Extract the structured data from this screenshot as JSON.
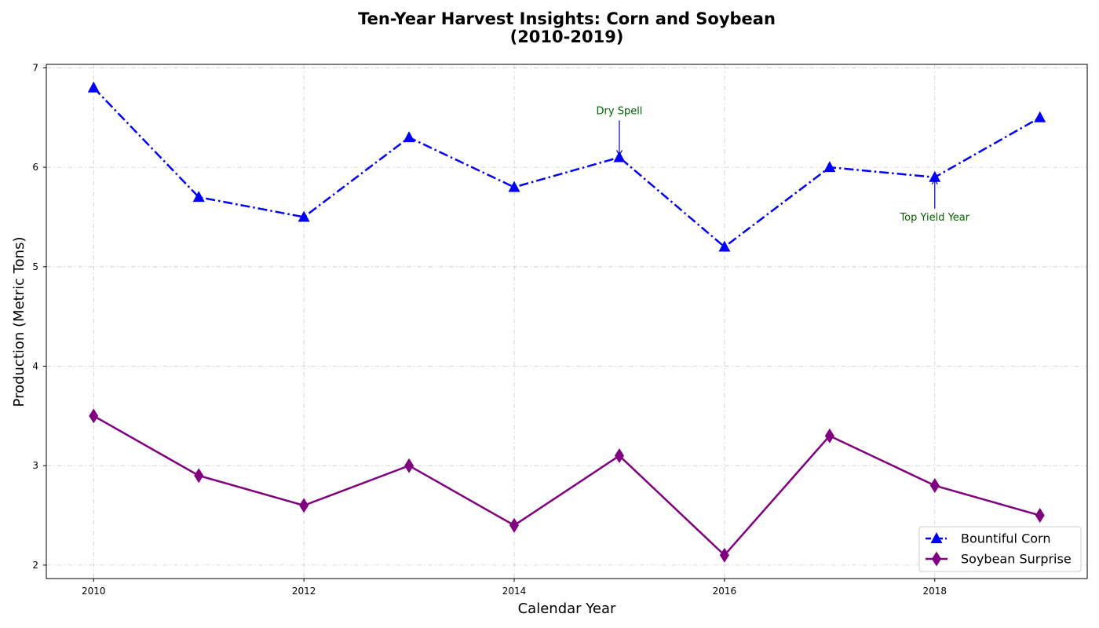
{
  "chart_data": {
    "type": "line",
    "title_lines": [
      "Ten-Year Harvest Insights: Corn and Soybean",
      "(2010-2019)"
    ],
    "xlabel": "Calendar Year",
    "ylabel": "Production (Metric Tons)",
    "x": [
      2010,
      2011,
      2012,
      2013,
      2014,
      2015,
      2016,
      2017,
      2018,
      2019
    ],
    "xlim": [
      2009.55,
      2019.45
    ],
    "ylim": [
      1.865,
      7.035
    ],
    "xticks": [
      2010,
      2012,
      2014,
      2016,
      2018
    ],
    "yticks": [
      2,
      3,
      4,
      5,
      6,
      7
    ],
    "grid": true,
    "legend_position": "lower-right",
    "series": [
      {
        "name": "Bountiful Corn",
        "values": [
          6.8,
          5.7,
          5.5,
          6.3,
          5.8,
          6.1,
          5.2,
          6.0,
          5.9,
          6.5
        ],
        "color": "#0000ff",
        "line_style": "dashdot",
        "marker": "triangle"
      },
      {
        "name": "Soybean Surprise",
        "values": [
          3.5,
          2.9,
          2.6,
          3.0,
          2.4,
          3.1,
          2.1,
          3.3,
          2.8,
          2.5
        ],
        "color": "#800080",
        "line_style": "solid",
        "marker": "diamond"
      }
    ],
    "annotations": [
      {
        "text": "Dry Spell",
        "x": 2015,
        "y": 6.1,
        "label_position": "above",
        "color": "#006400"
      },
      {
        "text": "Top Yield Year",
        "x": 2018,
        "y": 5.9,
        "label_position": "below",
        "color": "#006400"
      }
    ]
  }
}
